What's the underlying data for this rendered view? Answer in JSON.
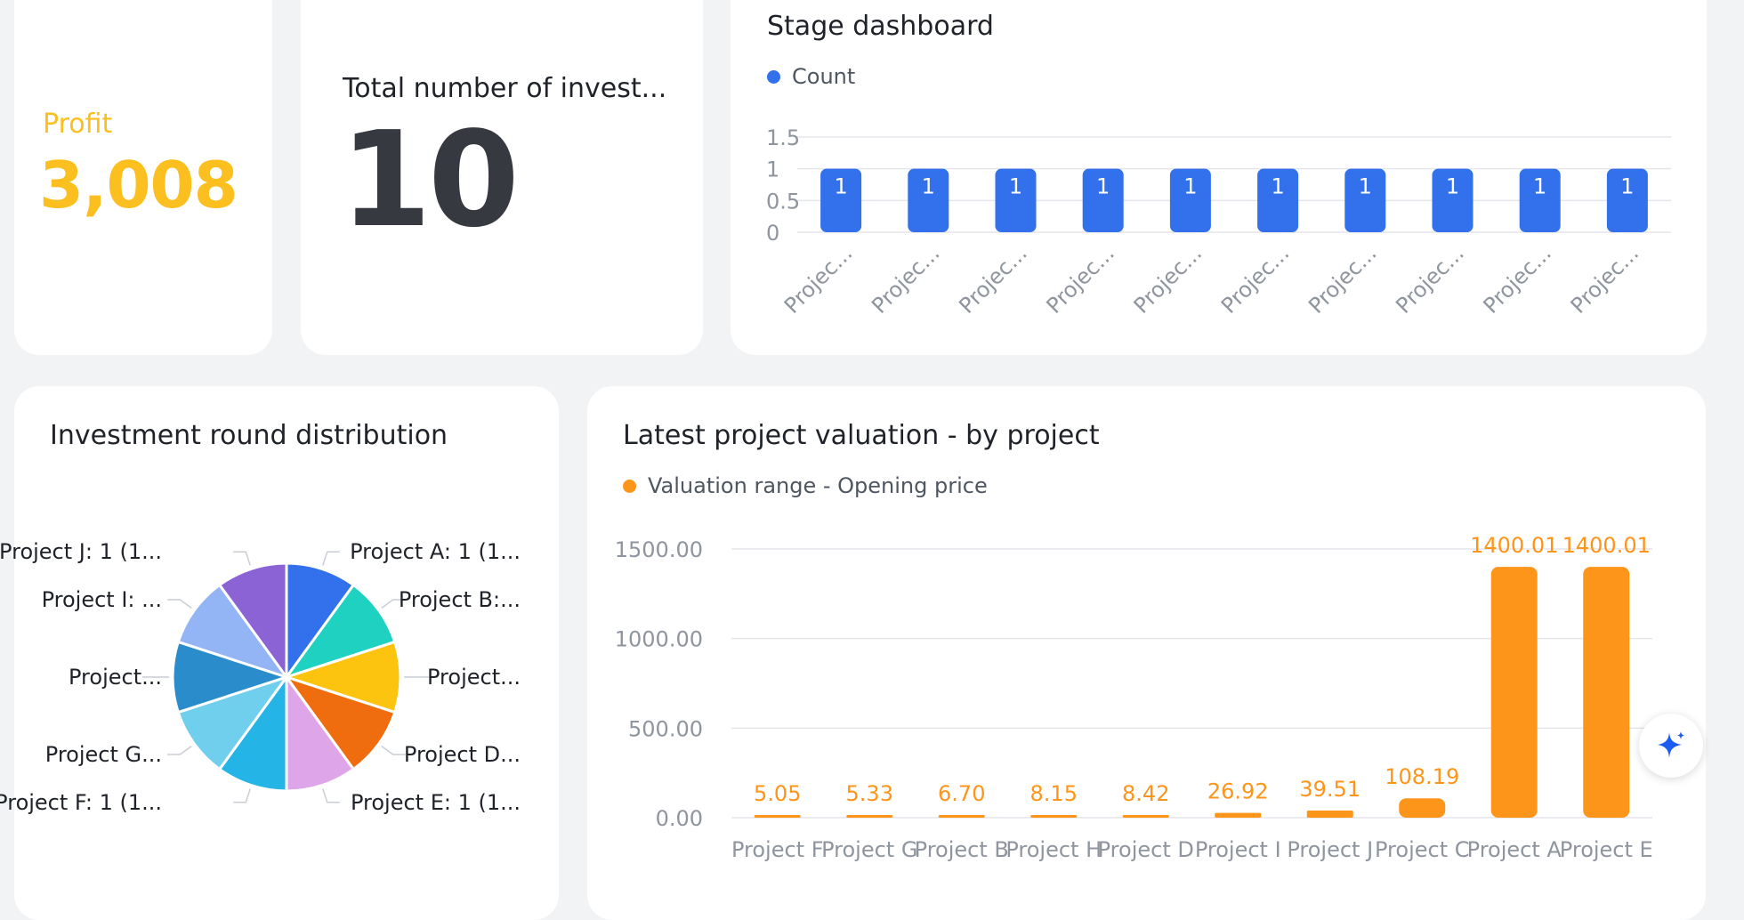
{
  "profit": {
    "label": "Profit",
    "value": "3,008"
  },
  "total_investments": {
    "label": "Total number of invest...",
    "value": "10"
  },
  "stage_dashboard": {
    "title": "Stage dashboard",
    "legend": "Count",
    "color": "#3370eb",
    "chart_data": {
      "type": "bar",
      "title": "Stage dashboard",
      "categories": [
        "Projec...",
        "Projec...",
        "Projec...",
        "Projec...",
        "Projec...",
        "Projec...",
        "Projec...",
        "Projec...",
        "Projec...",
        "Projec..."
      ],
      "series": [
        {
          "name": "Count",
          "values": [
            1,
            1,
            1,
            1,
            1,
            1,
            1,
            1,
            1,
            1
          ]
        }
      ],
      "y_ticks": [
        "1.5",
        "1",
        "0.5",
        "0"
      ],
      "ylim": [
        0,
        1.5
      ],
      "grid": true,
      "legend_position": "top-left"
    }
  },
  "investment_round": {
    "title": "Investment round distribution",
    "chart_data": {
      "type": "pie",
      "title": "Investment round distribution",
      "slices": [
        {
          "label": "Project A: 1 (1...",
          "value": 1,
          "color": "#3370eb"
        },
        {
          "label": "Project B:...",
          "value": 1,
          "color": "#1fd1c0"
        },
        {
          "label": "Project...",
          "value": 1,
          "color": "#fdc40f"
        },
        {
          "label": "Project D...",
          "value": 1,
          "color": "#ef6d0e"
        },
        {
          "label": "Project E: 1 (1...",
          "value": 1,
          "color": "#dea5e9"
        },
        {
          "label": "Project F: 1 (1...",
          "value": 1,
          "color": "#24b4e6"
        },
        {
          "label": "Project G...",
          "value": 1,
          "color": "#70cfec"
        },
        {
          "label": "Project...",
          "value": 1,
          "color": "#2b8ccc"
        },
        {
          "label": "Project I: ...",
          "value": 1,
          "color": "#93b4f5"
        },
        {
          "label": "Project J: 1 (1...",
          "value": 1,
          "color": "#8b63d4"
        }
      ]
    }
  },
  "valuation": {
    "title": "Latest project valuation - by project",
    "legend": "Valuation range - Opening price",
    "color": "#fe951b",
    "chart_data": {
      "type": "bar",
      "title": "Latest project valuation - by project",
      "categories": [
        "Project F",
        "Project G",
        "Project B",
        "Project H",
        "Project D",
        "Project I",
        "Project J",
        "Project C",
        "Project A",
        "Project E"
      ],
      "series": [
        {
          "name": "Valuation range - Opening price",
          "values": [
            5.05,
            5.33,
            6.7,
            8.15,
            8.42,
            26.92,
            39.51,
            108.19,
            1400.01,
            1400.01
          ]
        }
      ],
      "data_labels": [
        "5.05",
        "5.33",
        "6.70",
        "8.15",
        "8.42",
        "26.92",
        "39.51",
        "108.19",
        "1400.01",
        "1400.01"
      ],
      "y_ticks": [
        "1500.00",
        "1000.00",
        "500.00",
        "0.00"
      ],
      "ylim": [
        0,
        1500
      ],
      "grid": true,
      "legend_position": "top-left"
    }
  },
  "ai_button": {
    "icon": "sparkle-icon",
    "color": "#1d5cf0"
  }
}
